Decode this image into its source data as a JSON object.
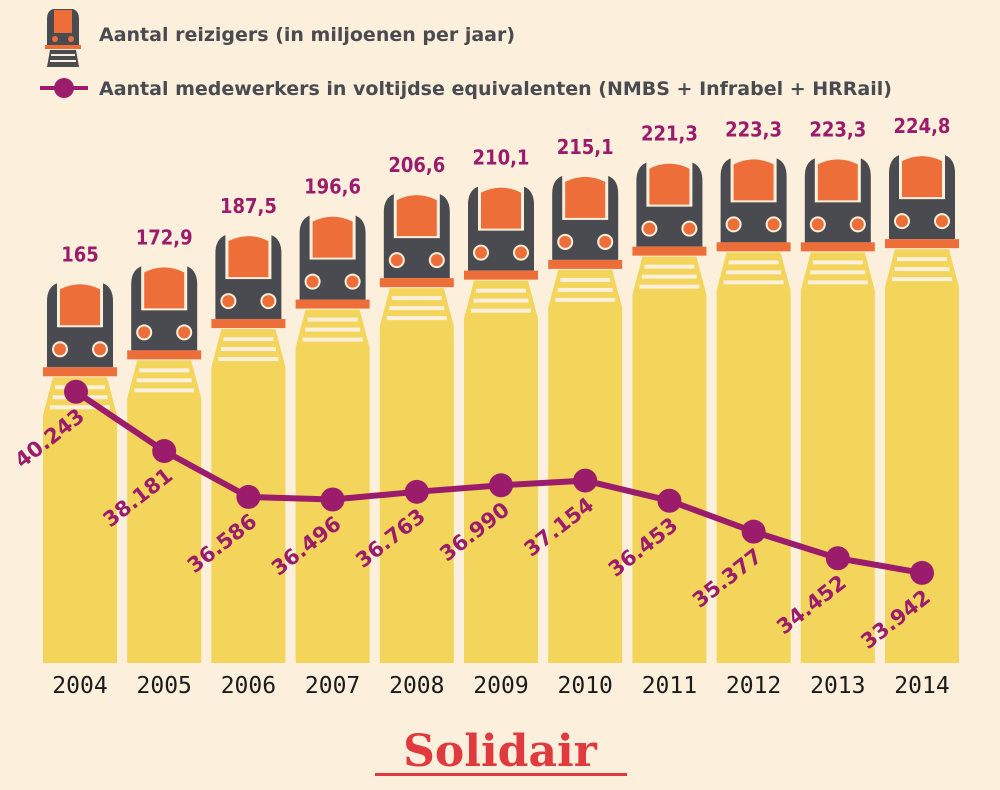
{
  "legend": {
    "travellers_label": "Aantal reizigers (in miljoenen per jaar)",
    "employees_label": "Aantal medewerkers in voltijdse equivalenten (NMBS + Infrabel + HRRail)"
  },
  "brand": "Solidair",
  "colors": {
    "background": "#fcf0dc",
    "bar": "#f2d55a",
    "train_body": "#4a4b50",
    "train_window": "#ee6e3a",
    "line": "#9c1c6c",
    "brand": "#e03a3e",
    "year_text": "#1b1b1b"
  },
  "chart_data": {
    "type": "bar",
    "title": "",
    "xlabel": "",
    "ylabel": "",
    "categories": [
      "2004",
      "2005",
      "2006",
      "2007",
      "2008",
      "2009",
      "2010",
      "2011",
      "2012",
      "2013",
      "2014"
    ],
    "series": [
      {
        "name": "Aantal reizigers (in miljoenen per jaar)",
        "type": "bar",
        "values": [
          165,
          172.9,
          187.5,
          196.6,
          206.6,
          210.1,
          215.1,
          221.3,
          223.3,
          223.3,
          224.8
        ],
        "labels": [
          "165",
          "172,9",
          "187,5",
          "196,6",
          "206,6",
          "210,1",
          "215,1",
          "221,3",
          "223,3",
          "223,3",
          "224,8"
        ]
      },
      {
        "name": "Aantal medewerkers in voltijdse equivalenten (NMBS + Infrabel + HRRail)",
        "type": "line",
        "values": [
          40243,
          38181,
          36586,
          36496,
          36763,
          36990,
          37154,
          36453,
          35377,
          34452,
          33942
        ],
        "labels": [
          "40.243",
          "38.181",
          "36.586",
          "36.496",
          "36.763",
          "36.990",
          "37.154",
          "36.453",
          "35.377",
          "34.452",
          "33.942"
        ]
      }
    ],
    "legend_position": "top-left",
    "grid": false
  }
}
